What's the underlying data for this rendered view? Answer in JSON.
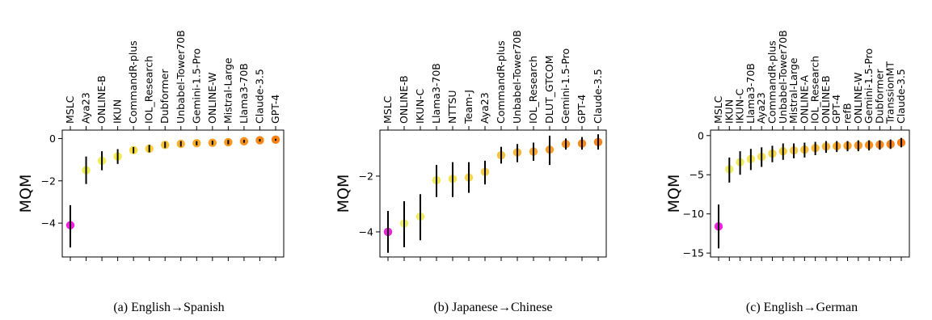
{
  "chart_data": [
    {
      "type": "scatter",
      "caption": "(a) English→Spanish",
      "ylabel": "MQM",
      "ylim": [
        -5.6,
        0.4
      ],
      "yticks": [
        0,
        -2,
        -4
      ],
      "categories": [
        "MSLC",
        "Aya23",
        "ONLINE-B",
        "IKUN",
        "CommandR-plus",
        "IOL_Research",
        "Dubformer",
        "Unbabel-Tower70B",
        "Gemini-1.5-Pro",
        "ONLINE-W",
        "Mistral-Large",
        "Llama3-70B",
        "Claude-3.5",
        "GPT-4"
      ],
      "values": [
        -4.1,
        -1.5,
        -1.05,
        -0.85,
        -0.55,
        -0.48,
        -0.3,
        -0.25,
        -0.22,
        -0.2,
        -0.17,
        -0.13,
        -0.08,
        -0.05
      ],
      "error_low": [
        -5.15,
        -2.15,
        -1.5,
        -1.2,
        -0.7,
        -0.65,
        -0.45,
        -0.38,
        -0.32,
        -0.3,
        -0.27,
        -0.2,
        -0.14,
        -0.1
      ],
      "error_high": [
        -3.15,
        -0.85,
        -0.6,
        -0.5,
        -0.4,
        -0.3,
        -0.15,
        -0.12,
        -0.12,
        -0.1,
        -0.07,
        -0.06,
        -0.02,
        -0.01
      ],
      "colors": [
        "#ee22dd",
        "#eeee55",
        "#f0ee50",
        "#f2ea48",
        "#f4dc40",
        "#f6d03a",
        "#f6c232",
        "#f8b42c",
        "#f8aa28",
        "#f8a024",
        "#f89820",
        "#f8901c",
        "#f88818",
        "#f88014"
      ]
    },
    {
      "type": "scatter",
      "caption": "(b) Japanese→Chinese",
      "ylabel": "MQM",
      "ylim": [
        -4.9,
        -0.35
      ],
      "yticks": [
        -2,
        -4
      ],
      "categories": [
        "MSLC",
        "ONLINE-B",
        "IKUN-C",
        "Llama3-70B",
        "NTTSU",
        "Team-J",
        "Aya23",
        "CommandR-plus",
        "Unbabel-Tower70B",
        "IOL_Research",
        "DLUT_GTCOM",
        "Gemini-1.5-Pro",
        "GPT-4",
        "Claude-3.5"
      ],
      "values": [
        -4.0,
        -3.7,
        -3.45,
        -2.15,
        -2.1,
        -2.05,
        -1.85,
        -1.25,
        -1.15,
        -1.12,
        -1.05,
        -0.85,
        -0.83,
        -0.78
      ],
      "error_low": [
        -4.75,
        -4.55,
        -4.3,
        -2.75,
        -2.75,
        -2.6,
        -2.3,
        -1.55,
        -1.5,
        -1.45,
        -1.6,
        -1.05,
        -1.05,
        -1.05
      ],
      "error_high": [
        -3.25,
        -2.9,
        -2.65,
        -1.6,
        -1.5,
        -1.5,
        -1.45,
        -0.95,
        -0.85,
        -0.8,
        -0.55,
        -0.65,
        -0.6,
        -0.5
      ],
      "colors": [
        "#ee22dd",
        "#eeee66",
        "#f0ee5a",
        "#f2e850",
        "#f2e04a",
        "#f4d844",
        "#f4d040",
        "#f6c036",
        "#f6b430",
        "#f8a82a",
        "#f89c24",
        "#f8901e",
        "#f8881a",
        "#f88016"
      ]
    },
    {
      "type": "scatter",
      "caption": "(c) English→German",
      "ylabel": "MQM",
      "ylim": [
        -15.5,
        0.7
      ],
      "yticks": [
        0,
        -5,
        -10,
        -15
      ],
      "categories": [
        "MSLC",
        "IKUN",
        "IKUN-C",
        "Llama3-70B",
        "Aya23",
        "CommandR-plus",
        "Unbabel-Tower70B",
        "Mistral-Large",
        "ONLINE-A",
        "IOL_Research",
        "ONLINE-B",
        "GPT-4",
        "refB",
        "ONLINE-W",
        "Gemini-1.5-Pro",
        "Dubformer",
        "TranssionMT",
        "Claude-3.5"
      ],
      "values": [
        -11.6,
        -4.3,
        -3.4,
        -3.0,
        -2.7,
        -2.3,
        -2.0,
        -1.9,
        -1.8,
        -1.6,
        -1.4,
        -1.35,
        -1.3,
        -1.25,
        -1.2,
        -1.15,
        -1.1,
        -0.9
      ],
      "error_low": [
        -14.4,
        -6.0,
        -5.0,
        -4.4,
        -4.0,
        -3.4,
        -3.1,
        -2.9,
        -2.8,
        -2.5,
        -2.2,
        -2.1,
        -2.0,
        -2.0,
        -1.9,
        -1.8,
        -1.7,
        -1.5
      ],
      "error_high": [
        -8.8,
        -2.8,
        -2.0,
        -1.7,
        -1.5,
        -1.3,
        -1.0,
        -1.0,
        -0.9,
        -0.8,
        -0.7,
        -0.7,
        -0.7,
        -0.6,
        -0.6,
        -0.6,
        -0.5,
        -0.3
      ],
      "colors": [
        "#ee22dd",
        "#eeee66",
        "#f0ec5e",
        "#f2e658",
        "#f2e052",
        "#f4d84c",
        "#f4d046",
        "#f6c842",
        "#f6c03c",
        "#f6b836",
        "#f8b032",
        "#f8a82e",
        "#f8a02a",
        "#f89826",
        "#f89022",
        "#f8881e",
        "#f8841a",
        "#f87c16"
      ]
    }
  ]
}
